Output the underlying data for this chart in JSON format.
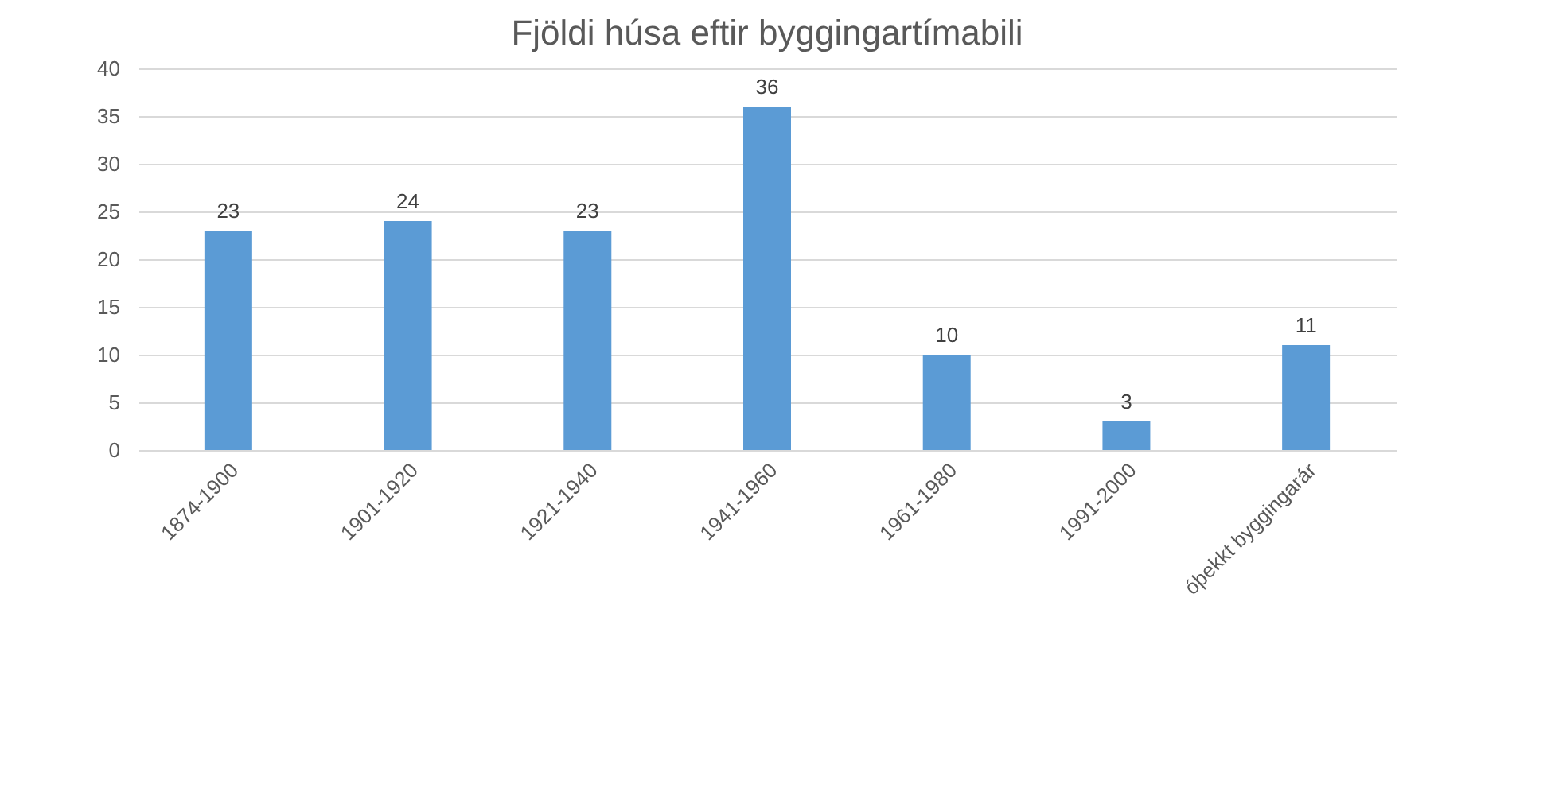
{
  "chart_data": {
    "type": "bar",
    "title": "Fjöldi húsa eftir byggingartímabili",
    "categories": [
      "1874-1900",
      "1901-1920",
      "1921-1940",
      "1941-1960",
      "1961-1980",
      "1991-2000",
      "óþekkt byggingarár"
    ],
    "values": [
      23,
      24,
      23,
      36,
      10,
      3,
      11
    ],
    "color": "#5b9bd5",
    "ylim": [
      0,
      40
    ],
    "yticks": [
      0,
      5,
      10,
      15,
      20,
      25,
      30,
      35,
      40
    ],
    "grid": "y",
    "data_labels": true
  }
}
